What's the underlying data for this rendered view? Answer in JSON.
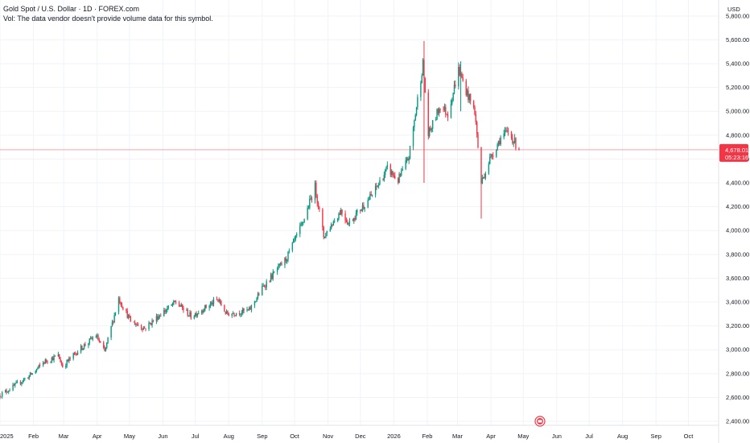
{
  "legend": {
    "title": "Gold Spot / U.S. Dollar · 1D · FOREX.com",
    "volume_note": "Vol: The data vendor doesn't provide volume data for this symbol."
  },
  "colors": {
    "up": "#089981",
    "down": "#f23645",
    "price_line": "#f23645",
    "grid": "#f0f3fa"
  },
  "chart_data": {
    "type": "candlestick",
    "currency": "USD",
    "ylim": [
      2380,
      5880
    ],
    "yticks": [
      2400,
      2600,
      2800,
      3000,
      3200,
      3400,
      3600,
      3800,
      4000,
      4200,
      4400,
      4600,
      4800,
      5000,
      5200,
      5400,
      5600,
      5800
    ],
    "ytick_labels": [
      "2,400.00",
      "2,600.00",
      "2,800.00",
      "3,000.00",
      "3,200.00",
      "3,400.00",
      "3,600.00",
      "3,800.00",
      "4,000.00",
      "4,200.00",
      "4,400.00",
      "4,600.00",
      "4,800.00",
      "5,000.00",
      "5,200.00",
      "5,400.00",
      "5,600.00",
      "5,800.00"
    ],
    "x_start": "2025-01-01",
    "x_end": "2026-10-29",
    "x_ticks": [
      {
        "date": "2025-01-01",
        "label": "2025"
      },
      {
        "date": "2025-02-01",
        "label": "Feb"
      },
      {
        "date": "2025-03-01",
        "label": "Mar"
      },
      {
        "date": "2025-04-01",
        "label": "Apr"
      },
      {
        "date": "2025-05-01",
        "label": "May"
      },
      {
        "date": "2025-06-01",
        "label": "Jun"
      },
      {
        "date": "2025-07-01",
        "label": "Jul"
      },
      {
        "date": "2025-08-01",
        "label": "Aug"
      },
      {
        "date": "2025-09-01",
        "label": "Sep"
      },
      {
        "date": "2025-10-01",
        "label": "Oct"
      },
      {
        "date": "2025-11-01",
        "label": "Nov"
      },
      {
        "date": "2025-12-01",
        "label": "Dec"
      },
      {
        "date": "2026-01-01",
        "label": "2026"
      },
      {
        "date": "2026-02-01",
        "label": "Feb"
      },
      {
        "date": "2026-03-01",
        "label": "Mar"
      },
      {
        "date": "2026-04-01",
        "label": "Apr"
      },
      {
        "date": "2026-05-01",
        "label": "May"
      },
      {
        "date": "2026-06-01",
        "label": "Jun"
      },
      {
        "date": "2026-07-01",
        "label": "Jul"
      },
      {
        "date": "2026-08-01",
        "label": "Aug"
      },
      {
        "date": "2026-09-01",
        "label": "Sep"
      },
      {
        "date": "2026-10-01",
        "label": "Oct"
      }
    ],
    "current_price": 4678,
    "current_price_label": "4,678.01",
    "countdown_label": "05:23:16",
    "path": [
      [
        "2025-01-01",
        2620
      ],
      [
        "2025-01-15",
        2700
      ],
      [
        "2025-01-31",
        2800
      ],
      [
        "2025-02-11",
        2900
      ],
      [
        "2025-02-24",
        2950
      ],
      [
        "2025-02-28",
        2860
      ],
      [
        "2025-03-14",
        2990
      ],
      [
        "2025-03-31",
        3120
      ],
      [
        "2025-04-08",
        2980
      ],
      [
        "2025-04-21",
        3430
      ],
      [
        "2025-05-02",
        3240
      ],
      [
        "2025-05-15",
        3180
      ],
      [
        "2025-05-30",
        3300
      ],
      [
        "2025-06-13",
        3400
      ],
      [
        "2025-06-27",
        3280
      ],
      [
        "2025-07-22",
        3420
      ],
      [
        "2025-07-30",
        3300
      ],
      [
        "2025-08-20",
        3330
      ],
      [
        "2025-09-02",
        3530
      ],
      [
        "2025-09-23",
        3760
      ],
      [
        "2025-10-08",
        4050
      ],
      [
        "2025-10-20",
        4370
      ],
      [
        "2025-10-28",
        3950
      ],
      [
        "2025-11-13",
        4170
      ],
      [
        "2025-11-20",
        4060
      ],
      [
        "2025-12-12",
        4300
      ],
      [
        "2025-12-26",
        4520
      ],
      [
        "2026-01-05",
        4420
      ],
      [
        "2026-01-15",
        4620
      ],
      [
        "2026-01-28",
        5400
      ],
      [
        "2026-02-02",
        4800
      ],
      [
        "2026-02-13",
        5050
      ],
      [
        "2026-02-20",
        4980
      ],
      [
        "2026-03-02",
        5350
      ],
      [
        "2026-03-10",
        5150
      ],
      [
        "2026-03-17",
        5000
      ],
      [
        "2026-03-23",
        4400
      ],
      [
        "2026-03-31",
        4600
      ],
      [
        "2026-04-10",
        4780
      ],
      [
        "2026-04-17",
        4830
      ],
      [
        "2026-04-27",
        4678
      ]
    ],
    "spikes": [
      [
        "2026-01-29",
        4400,
        5590
      ],
      [
        "2026-03-04",
        5000,
        5420
      ],
      [
        "2026-03-23",
        4100,
        4650
      ]
    ]
  }
}
